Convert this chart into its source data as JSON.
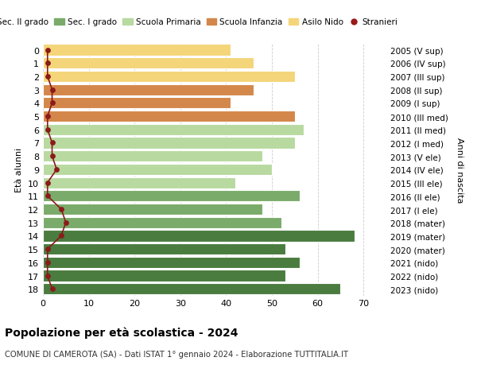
{
  "ages": [
    0,
    1,
    2,
    3,
    4,
    5,
    6,
    7,
    8,
    9,
    10,
    11,
    12,
    13,
    14,
    15,
    16,
    17,
    18
  ],
  "right_labels": [
    "2023 (nido)",
    "2022 (nido)",
    "2021 (nido)",
    "2020 (mater)",
    "2019 (mater)",
    "2018 (mater)",
    "2017 (I ele)",
    "2016 (II ele)",
    "2015 (III ele)",
    "2014 (IV ele)",
    "2013 (V ele)",
    "2012 (I med)",
    "2011 (II med)",
    "2010 (III med)",
    "2009 (I sup)",
    "2008 (II sup)",
    "2007 (III sup)",
    "2006 (IV sup)",
    "2005 (V sup)"
  ],
  "bar_values": [
    41,
    46,
    55,
    46,
    41,
    55,
    57,
    55,
    48,
    50,
    42,
    56,
    48,
    52,
    68,
    53,
    56,
    53,
    65
  ],
  "bar_colors": [
    "#f5d57a",
    "#f5d57a",
    "#f5d57a",
    "#d4874a",
    "#d4874a",
    "#d4874a",
    "#b8d9a0",
    "#b8d9a0",
    "#b8d9a0",
    "#b8d9a0",
    "#b8d9a0",
    "#7aab6a",
    "#7aab6a",
    "#7aab6a",
    "#4a7c3f",
    "#4a7c3f",
    "#4a7c3f",
    "#4a7c3f",
    "#4a7c3f"
  ],
  "stranieri_values": [
    1,
    1,
    1,
    2,
    2,
    1,
    1,
    2,
    2,
    3,
    1,
    1,
    4,
    5,
    4,
    1,
    1,
    1,
    2
  ],
  "legend_labels": [
    "Sec. II grado",
    "Sec. I grado",
    "Scuola Primaria",
    "Scuola Infanzia",
    "Asilo Nido",
    "Stranieri"
  ],
  "legend_colors": [
    "#4a7c3f",
    "#7aab6a",
    "#b8d9a0",
    "#d4874a",
    "#f5d57a",
    "#9b1a1a"
  ],
  "xlim": [
    0,
    75
  ],
  "xlabel_ticks": [
    0,
    10,
    20,
    30,
    40,
    50,
    60,
    70
  ],
  "ylabel": "Età alunni",
  "right_ylabel": "Anni di nascita",
  "title": "Popolazione per età scolastica - 2024",
  "subtitle": "COMUNE DI CAMEROTA (SA) - Dati ISTAT 1° gennaio 2024 - Elaborazione TUTTITALIA.IT",
  "bg_color": "#ffffff",
  "bar_edge_color": "white",
  "grid_color": "#cccccc"
}
